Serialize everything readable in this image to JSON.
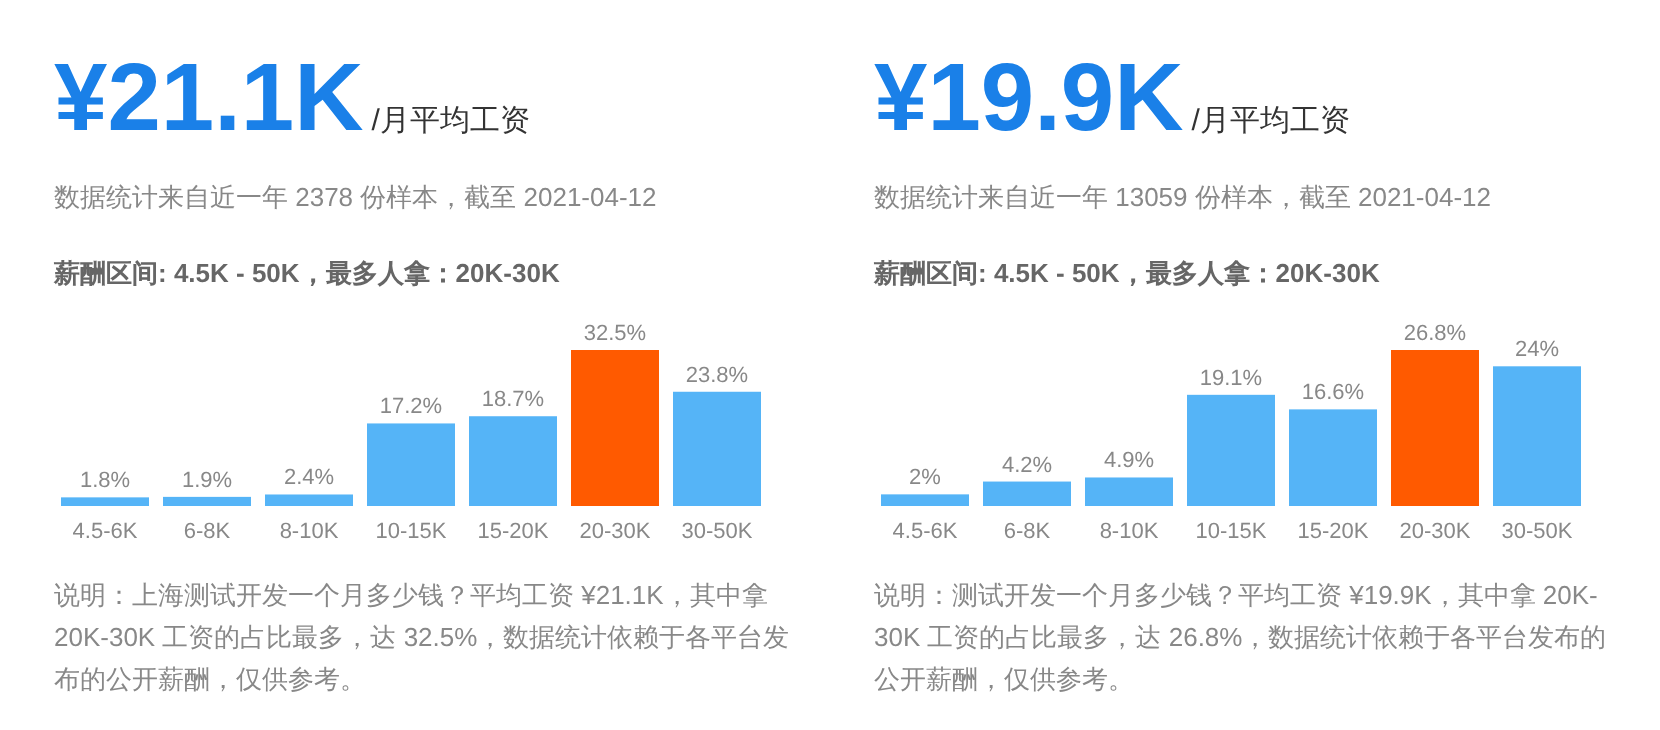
{
  "chart_data": [
    {
      "type": "bar",
      "title": "¥21.1K",
      "subtitle": "/月平均工资",
      "annotations": [
        "数据统计来自近一年 2378 份样本，截至 2021-04-12",
        "薪酬区间: 4.5K - 50K，最多人拿：20K-30K",
        "说明：上海测试开发一个月多少钱？平均工资 ¥21.1K，其中拿 20K-30K 工资的占比最多，达 32.5%，数据统计依赖于各平台发布的公开薪酬，仅供参考。"
      ],
      "categories": [
        "4.5-6K",
        "6-8K",
        "8-10K",
        "10-15K",
        "15-20K",
        "20-30K",
        "30-50K"
      ],
      "values": [
        1.8,
        1.9,
        2.4,
        17.2,
        18.7,
        32.5,
        23.8
      ],
      "value_labels": [
        "1.8%",
        "1.9%",
        "2.4%",
        "17.2%",
        "18.7%",
        "32.5%",
        "23.8%"
      ],
      "colors": [
        "#55b4f7",
        "#55b4f7",
        "#55b4f7",
        "#55b4f7",
        "#55b4f7",
        "#ff5a00",
        "#55b4f7"
      ]
    },
    {
      "type": "bar",
      "title": "¥19.9K",
      "subtitle": "/月平均工资",
      "annotations": [
        "数据统计来自近一年 13059 份样本，截至 2021-04-12",
        "薪酬区间: 4.5K - 50K，最多人拿：20K-30K",
        "说明：测试开发一个月多少钱？平均工资 ¥19.9K，其中拿 20K-30K 工资的占比最多，达 26.8%，数据统计依赖于各平台发布的公开薪酬，仅供参考。"
      ],
      "categories": [
        "4.5-6K",
        "6-8K",
        "8-10K",
        "10-15K",
        "15-20K",
        "20-30K",
        "30-50K"
      ],
      "values": [
        2,
        4.2,
        4.9,
        19.1,
        16.6,
        26.8,
        24
      ],
      "value_labels": [
        "2%",
        "4.2%",
        "4.9%",
        "19.1%",
        "16.6%",
        "26.8%",
        "24%"
      ],
      "colors": [
        "#55b4f7",
        "#55b4f7",
        "#55b4f7",
        "#55b4f7",
        "#55b4f7",
        "#ff5a00",
        "#55b4f7"
      ]
    }
  ]
}
